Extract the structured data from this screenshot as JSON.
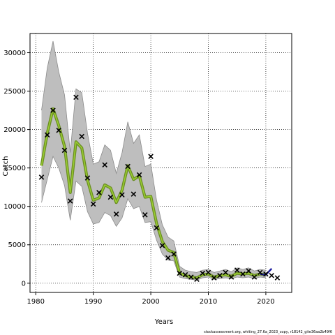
{
  "chart_data": {
    "type": "line",
    "title": "",
    "xlabel": "Years",
    "ylabel": "Catch",
    "xlim": [
      1979,
      2024.5
    ],
    "ylim": [
      -1200,
      32500
    ],
    "xticks": [
      1980,
      1990,
      2000,
      2010,
      2020
    ],
    "yticks": [
      0,
      5000,
      10000,
      15000,
      20000,
      25000,
      30000
    ],
    "grid": true,
    "grid_style": "dotted",
    "colors": {
      "band": "#bebebe",
      "band_edge": "#8c8c8c",
      "fit_outer": "#6b8e23",
      "fit_inner": "#9acd32",
      "forecast": "#1f1fa0",
      "observed_marker": "#000000"
    },
    "series": [
      {
        "role": "model-estimate",
        "kind": "line",
        "x": [
          1981,
          1982,
          1983,
          1984,
          1985,
          1986,
          1987,
          1988,
          1989,
          1990,
          1991,
          1992,
          1993,
          1994,
          1995,
          1996,
          1997,
          1998,
          1999,
          2000,
          2001,
          2002,
          2003,
          2004,
          2005,
          2006,
          2007,
          2008,
          2009,
          2010,
          2011,
          2012,
          2013,
          2014,
          2015,
          2016,
          2017,
          2018,
          2019,
          2020
        ],
        "y": [
          15300,
          19500,
          22700,
          20500,
          17800,
          11800,
          18400,
          17600,
          13400,
          10800,
          11100,
          12800,
          12400,
          10500,
          12100,
          15300,
          13500,
          14000,
          11200,
          11300,
          7800,
          5400,
          4300,
          4000,
          1300,
          1000,
          800,
          700,
          1100,
          1200,
          800,
          1000,
          1100,
          900,
          1300,
          1200,
          1300,
          1000,
          1200,
          1100
        ]
      },
      {
        "role": "confidence-band-upper",
        "kind": "band",
        "x": [
          1981,
          1982,
          1983,
          1984,
          1985,
          1986,
          1987,
          1988,
          1989,
          1990,
          1991,
          1992,
          1993,
          1994,
          1995,
          1996,
          1997,
          1998,
          1999,
          2000,
          2001,
          2002,
          2003,
          2004,
          2005,
          2006,
          2007,
          2008,
          2009,
          2010,
          2011,
          2012,
          2013,
          2014,
          2015,
          2016,
          2017,
          2018,
          2019,
          2020
        ],
        "y": [
          22500,
          28000,
          31500,
          27500,
          24500,
          17000,
          25300,
          24800,
          19500,
          15500,
          15800,
          18000,
          17300,
          14300,
          17000,
          21000,
          18200,
          19300,
          15200,
          15500,
          10800,
          7600,
          6000,
          5500,
          2200,
          1700,
          1500,
          1400,
          1700,
          1800,
          1400,
          1600,
          1800,
          1500,
          2000,
          1800,
          2000,
          1600,
          1800,
          1700
        ]
      },
      {
        "role": "confidence-band-lower",
        "kind": "band",
        "x": [
          1981,
          1982,
          1983,
          1984,
          1985,
          1986,
          1987,
          1988,
          1989,
          1990,
          1991,
          1992,
          1993,
          1994,
          1995,
          1996,
          1997,
          1998,
          1999,
          2000,
          2001,
          2002,
          2003,
          2004,
          2005,
          2006,
          2007,
          2008,
          2009,
          2010,
          2011,
          2012,
          2013,
          2014,
          2015,
          2016,
          2017,
          2018,
          2019,
          2020
        ],
        "y": [
          10500,
          13500,
          16500,
          15000,
          12700,
          8200,
          13300,
          12600,
          9300,
          7700,
          7900,
          9200,
          8800,
          7400,
          8500,
          11000,
          9700,
          10000,
          7900,
          8000,
          5600,
          3800,
          3000,
          2900,
          800,
          600,
          500,
          400,
          700,
          800,
          500,
          600,
          700,
          600,
          800,
          700,
          800,
          600,
          800,
          700
        ]
      },
      {
        "role": "forecast",
        "kind": "line",
        "x": [
          2019,
          2020,
          2021
        ],
        "y": [
          1200,
          1100,
          1900
        ]
      },
      {
        "role": "observed-catch",
        "kind": "scatter",
        "marker": "x",
        "x": [
          1981,
          1982,
          1983,
          1984,
          1985,
          1986,
          1987,
          1988,
          1989,
          1990,
          1991,
          1992,
          1993,
          1994,
          1995,
          1996,
          1997,
          1998,
          1999,
          2000,
          2001,
          2002,
          2003,
          2004,
          2005,
          2006,
          2007,
          2008,
          2009,
          2010,
          2011,
          2012,
          2013,
          2014,
          2015,
          2016,
          2017,
          2018,
          2019,
          2020,
          2021,
          2022
        ],
        "y": [
          13800,
          19300,
          22500,
          19900,
          17300,
          10700,
          24200,
          19100,
          13700,
          10300,
          11800,
          15400,
          11200,
          9000,
          11500,
          15200,
          11600,
          14100,
          8900,
          16500,
          7200,
          4900,
          3300,
          3800,
          1300,
          1100,
          800,
          500,
          1300,
          1400,
          700,
          1000,
          1400,
          800,
          1700,
          1200,
          1600,
          800,
          1400,
          1200,
          1000,
          700
        ]
      }
    ]
  },
  "footnote": "stockassessment.org, whiting_27.6a_2023_copy, r18142_gite36aa2b49f6"
}
